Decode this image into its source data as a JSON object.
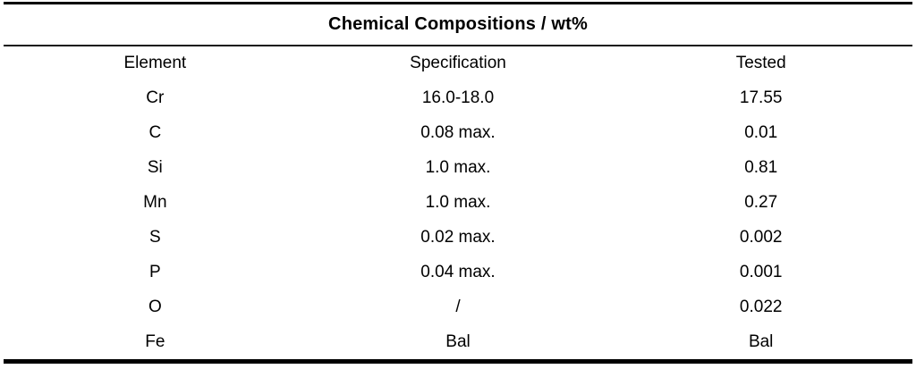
{
  "table": {
    "title": "Chemical Compositions / wt%",
    "columns": [
      "Element",
      "Specification",
      "Tested"
    ],
    "rows": [
      {
        "element": "Cr",
        "specification": "16.0-18.0",
        "tested": "17.55"
      },
      {
        "element": "C",
        "specification": "0.08 max.",
        "tested": "0.01"
      },
      {
        "element": "Si",
        "specification": "1.0 max.",
        "tested": "0.81"
      },
      {
        "element": "Mn",
        "specification": "1.0 max.",
        "tested": "0.27"
      },
      {
        "element": "S",
        "specification": "0.02 max.",
        "tested": "0.002"
      },
      {
        "element": "P",
        "specification": "0.04 max.",
        "tested": "0.001"
      },
      {
        "element": "O",
        "specification": "/",
        "tested": "0.022"
      },
      {
        "element": "Fe",
        "specification": "Bal",
        "tested": "Bal"
      }
    ],
    "colors": {
      "rule": "#000000",
      "text": "#000000",
      "background": "#ffffff"
    }
  }
}
